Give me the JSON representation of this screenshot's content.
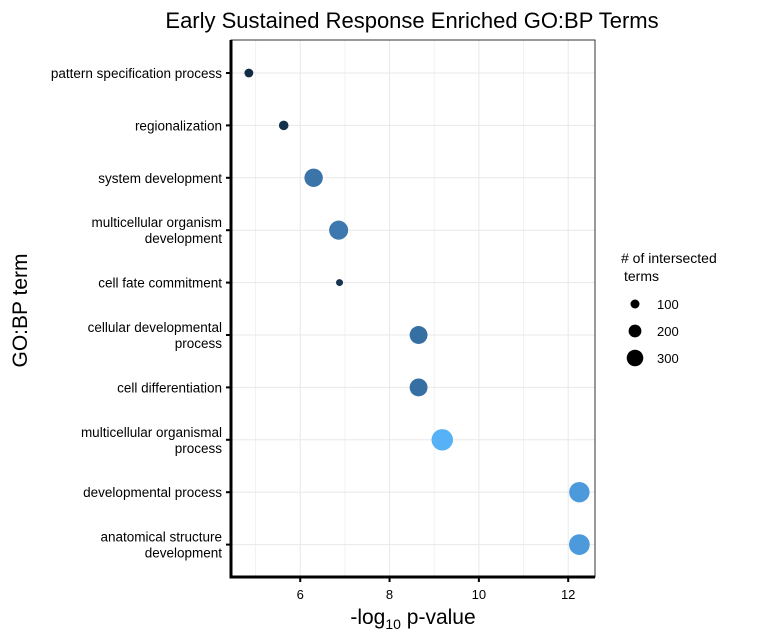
{
  "chart_data": {
    "type": "scatter",
    "title": "Early Sustained Response Enriched GO:BP Terms",
    "xlabel": {
      "prefix": "-log",
      "subscript": "10",
      "suffix": " p-value"
    },
    "ylabel": "GO:BP term",
    "x_ticks": [
      6,
      8,
      10,
      12
    ],
    "xlim": [
      4.45,
      12.6
    ],
    "grid": true,
    "legend": {
      "title_line1": "# of intersected",
      "title_line2": "terms",
      "placement": "right",
      "entries": [
        {
          "label": "100",
          "value": 100
        },
        {
          "label": "200",
          "value": 200
        },
        {
          "label": "300",
          "value": 300
        }
      ]
    },
    "points": [
      {
        "term": [
          "pattern specification process"
        ],
        "x": 4.85,
        "size": 65,
        "color": "#132B43"
      },
      {
        "term": [
          "regionalization"
        ],
        "x": 5.63,
        "size": 75,
        "color": "#15324D"
      },
      {
        "term": [
          "system development"
        ],
        "x": 6.3,
        "size": 280,
        "color": "#3A74A8"
      },
      {
        "term": [
          "multicellular organism",
          "development"
        ],
        "x": 6.86,
        "size": 300,
        "color": "#3D78AE"
      },
      {
        "term": [
          "cell fate commitment"
        ],
        "x": 6.88,
        "size": 40,
        "color": "#16334F"
      },
      {
        "term": [
          "cellular developmental",
          "process"
        ],
        "x": 8.65,
        "size": 265,
        "color": "#3670A3"
      },
      {
        "term": [
          "cell differentiation"
        ],
        "x": 8.65,
        "size": 265,
        "color": "#3670A3"
      },
      {
        "term": [
          "multicellular organismal",
          "process"
        ],
        "x": 9.18,
        "size": 380,
        "color": "#56B1F7"
      },
      {
        "term": [
          "developmental process"
        ],
        "x": 12.25,
        "size": 345,
        "color": "#4C9ADB"
      },
      {
        "term": [
          "anatomical structure",
          "development"
        ],
        "x": 12.25,
        "size": 355,
        "color": "#4C9ADB"
      }
    ]
  }
}
